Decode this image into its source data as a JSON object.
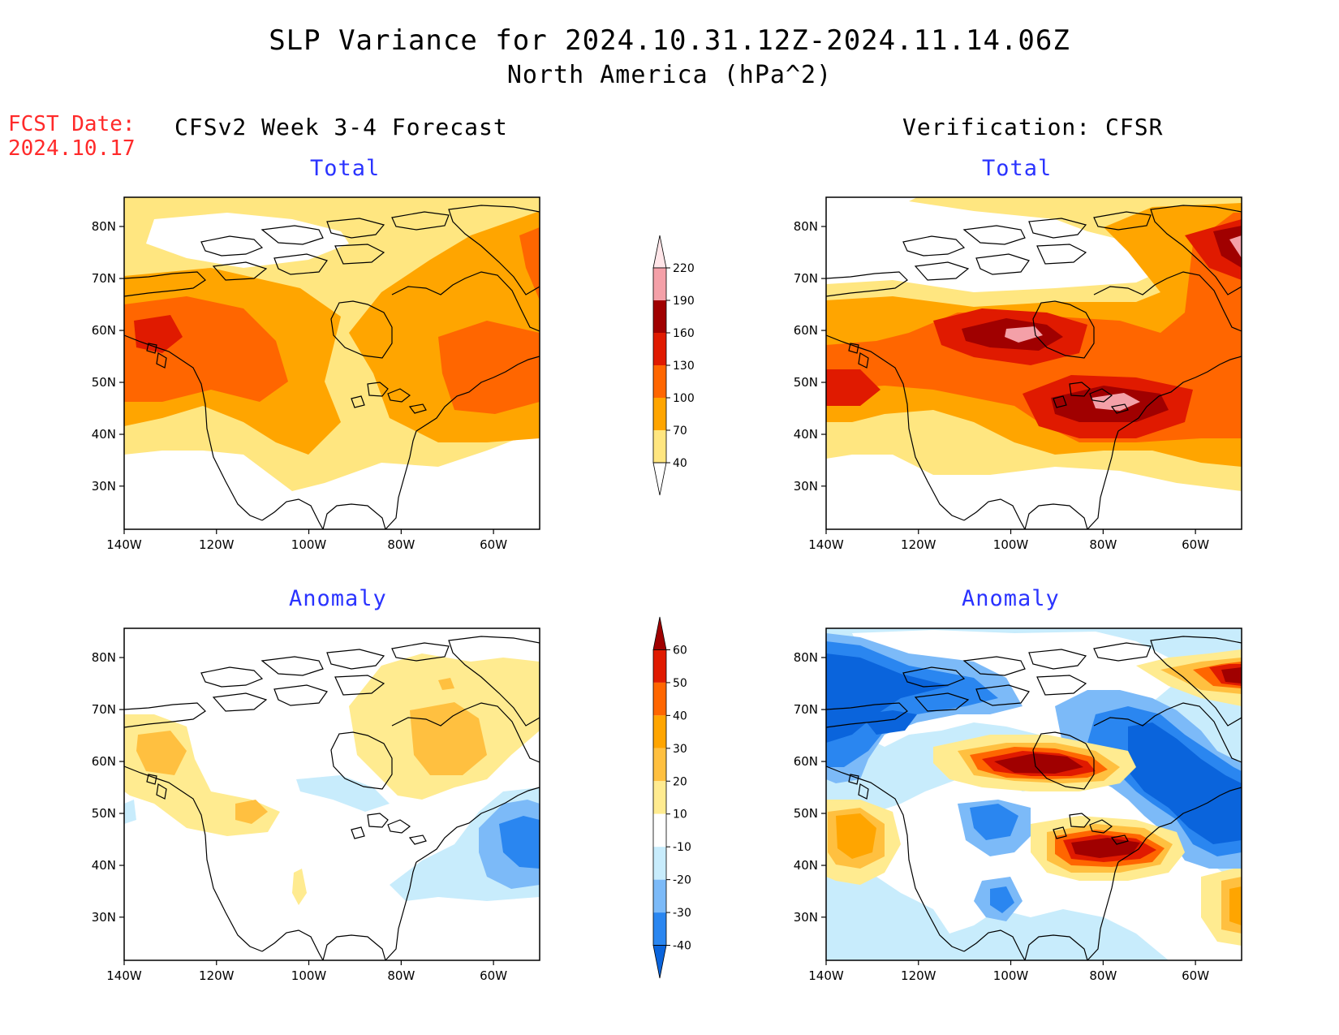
{
  "header": {
    "title_line1": "SLP Variance for 2024.10.31.12Z-2024.11.14.06Z",
    "title_line2": "North America (hPa^2)",
    "fcst_label": "FCST Date:",
    "fcst_date": "2024.10.17",
    "left_column_title": "CFSv2 Week 3-4 Forecast",
    "right_column_title": "Verification: CFSR"
  },
  "panels": {
    "forecast_total_title": "Total",
    "forecast_anomaly_title": "Anomaly",
    "verification_total_title": "Total",
    "verification_anomaly_title": "Anomaly"
  },
  "axes": {
    "lat_labels": [
      "80N",
      "70N",
      "60N",
      "50N",
      "40N",
      "30N"
    ],
    "lon_labels": [
      "140W",
      "120W",
      "100W",
      "80W",
      "60W"
    ]
  },
  "colorbars": {
    "total": {
      "levels": [
        "40",
        "70",
        "100",
        "130",
        "160",
        "190",
        "220"
      ],
      "colors": [
        "#ffffff",
        "#ffe680",
        "#ffa500",
        "#ff6600",
        "#e01a00",
        "#a00000",
        "#f4a0a8",
        "#ffe5e8"
      ]
    },
    "anomaly": {
      "levels": [
        "-40",
        "-30",
        "-20",
        "-10",
        "10",
        "20",
        "30",
        "40",
        "50",
        "60"
      ],
      "colors": [
        "#0a64dc",
        "#2a86f0",
        "#7cbaf8",
        "#c8ecfc",
        "#ffffff",
        "#ffeb90",
        "#ffc040",
        "#ffa500",
        "#ff6600",
        "#e01a00",
        "#a00000"
      ]
    }
  }
}
